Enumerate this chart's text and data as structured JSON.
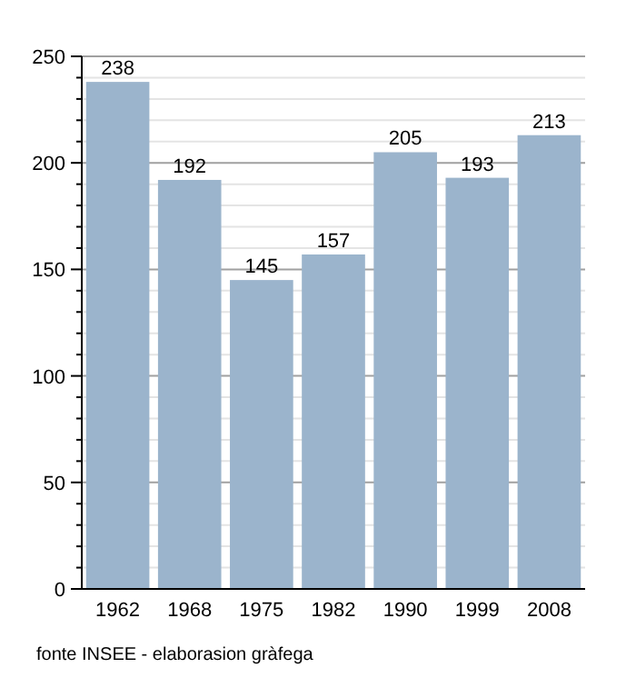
{
  "chart_data": {
    "type": "bar",
    "categories": [
      "1962",
      "1968",
      "1975",
      "1982",
      "1990",
      "1999",
      "2008"
    ],
    "values": [
      238,
      192,
      145,
      157,
      205,
      193,
      213
    ],
    "color": "#9bb4cc",
    "data_labels": true,
    "grid": "y",
    "ylim": [
      0,
      250
    ],
    "yticks": [
      0,
      {
        "value": 10,
        "label": null
      },
      {
        "value": 20,
        "label": null
      },
      {
        "value": 30,
        "label": null
      },
      {
        "value": 40,
        "label": null
      },
      50,
      {
        "value": 60,
        "label": null
      },
      {
        "value": 70,
        "label": null
      },
      {
        "value": 80,
        "label": null
      },
      {
        "value": 90,
        "label": null
      },
      100,
      {
        "value": 110,
        "label": null
      },
      {
        "value": 120,
        "label": null
      },
      {
        "value": 130,
        "label": null
      },
      {
        "value": 140,
        "label": null
      },
      150,
      {
        "value": 160,
        "label": null
      },
      {
        "value": 170,
        "label": null
      },
      {
        "value": 180,
        "label": null
      },
      {
        "value": 190,
        "label": null
      },
      200,
      {
        "value": 210,
        "label": null
      },
      {
        "value": 220,
        "label": null
      },
      {
        "value": 230,
        "label": null
      },
      {
        "value": 240,
        "label": null
      },
      250
    ],
    "annotations": [
      "fonte INSEE - elaborasion gràfega"
    ]
  }
}
